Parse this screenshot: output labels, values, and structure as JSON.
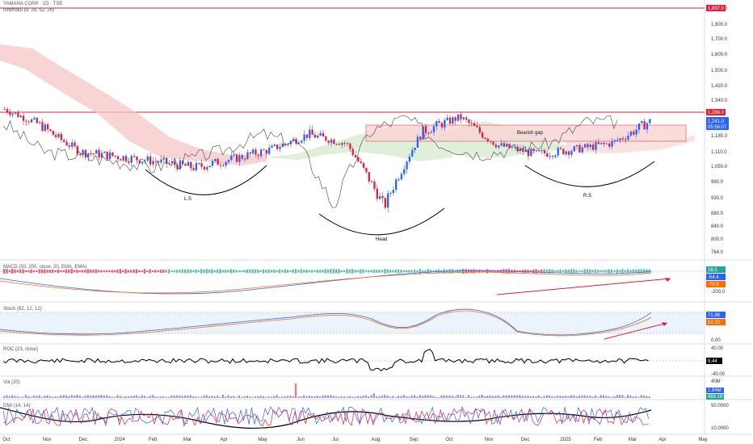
{
  "header": {
    "symbol": "YAMAHA CORP · 1D · TSE",
    "indicator": "Ichimoku (9, 26, 52, 26)"
  },
  "price_axis": {
    "ticks": [
      "1,897.0",
      "1,800.0",
      "1,700.0",
      "1,600.0",
      "1,500.0",
      "1,420.0",
      "1,340.0",
      "1,185.0",
      "1,110.0",
      "1,050.0",
      "990.0",
      "930.0",
      "880.0",
      "840.0",
      "800.0",
      "764.0"
    ],
    "tags": {
      "top_line": "1,897.0",
      "resistance": "1,286.0",
      "last": "1,241.0",
      "countdown": "05:56:07"
    }
  },
  "annotations": {
    "bearish_gap": "Bearish gap",
    "left_shoulder": "L.S",
    "head": "Head",
    "right_shoulder": "R.S"
  },
  "x_axis": [
    "Oct",
    "Nov",
    "Dec",
    "2024",
    "Feb",
    "Mar",
    "Apr",
    "May",
    "Jun",
    "Jul",
    "Aug",
    "Sep",
    "Oct",
    "Nov",
    "Dec",
    "2025",
    "Feb",
    "Mar",
    "Apr",
    "May"
  ],
  "panels": {
    "macd": {
      "title": "MACD (50, 200, close, 20, EMA, EMA)",
      "ticks": [
        "-200.0"
      ],
      "tags": [
        "16.5",
        "-54.4",
        "-70.9"
      ]
    },
    "stoch": {
      "title": "Stoch (82, 12, 12)",
      "ticks": [
        "0.00"
      ],
      "tags": [
        "71.88",
        "52.23"
      ]
    },
    "roc": {
      "title": "ROC (23, close)",
      "ticks": [
        "40.00",
        "-40.00"
      ],
      "tags": [
        "9.44"
      ]
    },
    "vol": {
      "title": "Vol (20)",
      "ticks": [
        "40M"
      ],
      "tags": [
        "1.84M",
        "493.1K"
      ]
    },
    "dmi": {
      "title": "DMI (14, 14)",
      "ticks": [
        "50.0000",
        "10.0000"
      ]
    }
  },
  "colors": {
    "up": "#2962ff",
    "down": "#e0203a",
    "resistance": "#e0203a",
    "cloud_bear": "#f7c6c6",
    "cloud_bull": "#c9e4c0",
    "gap": "#f8d7d7",
    "arrow": "#e0203a",
    "macd": "#2962ff",
    "signal": "#ff6d00",
    "stoch_k": "#2962ff",
    "stoch_d": "#ff6d00",
    "dmi_plus": "#2962ff",
    "dmi_minus": "#e0203a",
    "adx": "#000000"
  },
  "chart_data": {
    "type": "candlestick",
    "x": [
      "Oct",
      "Nov",
      "Dec",
      "2024",
      "Feb",
      "Mar",
      "Apr",
      "May",
      "Jun",
      "Jul",
      "Aug",
      "Sep",
      "Oct",
      "Nov",
      "Dec",
      "2025",
      "Feb",
      "Mar"
    ],
    "close_approx": [
      1300,
      1220,
      1110,
      1090,
      1070,
      1045,
      1080,
      1120,
      1190,
      1150,
      900,
      1200,
      1260,
      1140,
      1100,
      1120,
      1150,
      1241
    ],
    "levels": {
      "resistance": 1286.0,
      "top_line": 1897.0,
      "last": 1241.0
    },
    "ylim": [
      764,
      1897
    ]
  }
}
